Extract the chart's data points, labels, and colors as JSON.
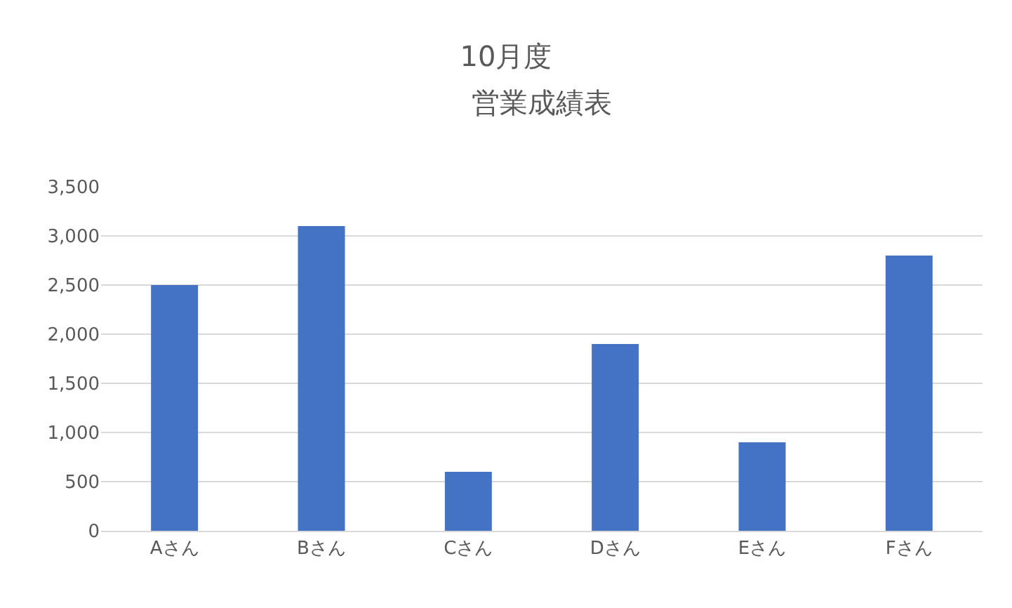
{
  "chart_data": {
    "type": "bar",
    "title": "10月度",
    "subtitle": "営業成績表",
    "categories": [
      "Aさん",
      "Bさん",
      "Cさん",
      "Dさん",
      "Eさん",
      "Fさん"
    ],
    "values": [
      2500,
      3100,
      600,
      1900,
      900,
      2800
    ],
    "color": "#4472c4",
    "ylim": [
      0,
      3500
    ],
    "yticks": [
      0,
      500,
      {
        "value": 1000,
        "label": "1,000"
      },
      {
        "value": 1500,
        "label": "1,500"
      },
      {
        "value": 2000,
        "label": "2,000"
      },
      {
        "value": 2500,
        "label": "2,500"
      },
      {
        "value": 3000,
        "label": "3,000"
      },
      {
        "value": 3500,
        "label": "3,500"
      }
    ],
    "grid": "y",
    "legend": false
  }
}
